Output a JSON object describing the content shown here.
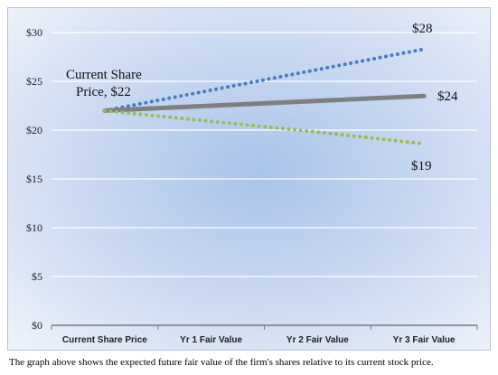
{
  "chart_data": {
    "type": "line",
    "categories": [
      "Current Share Price",
      "Yr 1 Fair Value",
      "Yr 2 Fair Value",
      "Yr 3 Fair Value"
    ],
    "y_ticks": [
      "$0",
      "$5",
      "$10",
      "$15",
      "$20",
      "$25",
      "$30"
    ],
    "ylim": [
      0,
      30
    ],
    "grid": true,
    "series": [
      {
        "key": "high",
        "values": [
          22,
          24.1,
          26.2,
          28.3
        ],
        "color": "#4a7dc0",
        "style": "dotted"
      },
      {
        "key": "mid",
        "values": [
          22,
          22.5,
          23,
          23.5
        ],
        "color": "#7f7f7f",
        "style": "solid"
      },
      {
        "key": "low",
        "values": [
          22,
          20.9,
          19.8,
          18.6
        ],
        "color": "#9bbb59",
        "style": "dotted"
      }
    ],
    "annotations": {
      "current_line1": "Current Share",
      "current_line2": "Price, $22",
      "high_end": "$28",
      "mid_end": "$24",
      "low_end": "$19"
    }
  },
  "caption": "The graph above shows the expected future fair value of the firm's shares relative to its current stock price."
}
